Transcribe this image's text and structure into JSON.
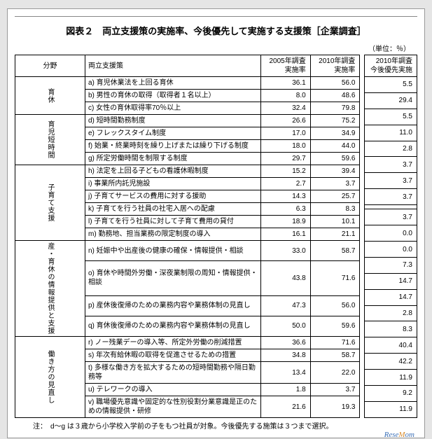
{
  "title": "図表２　両立支援策の実施率、今後優先して実施する支援策［企業調査］",
  "unit": "（単位：％）",
  "headers": {
    "field": "分野",
    "policy": "両立支援策",
    "col2005": "2005年調査\n実施率",
    "col2010": "2010年調査\n実施率",
    "col_future": "2010年調査\n今後優先実施"
  },
  "groups": [
    {
      "label": "育休",
      "rows": [
        {
          "p": "a) 育児休業法を上回る育休",
          "a": "36.1",
          "b": "56.0",
          "c": "5.5"
        },
        {
          "p": "b) 男性の育休の取得（取得者１名以上）",
          "a": "8.0",
          "b": "48.6",
          "c": "29.4"
        },
        {
          "p": "c) 女性の育休取得率70％以上",
          "a": "32.4",
          "b": "79.8",
          "c": "5.5"
        }
      ]
    },
    {
      "label": "育児短時間",
      "rows": [
        {
          "p": "d) 短時間勤務制度",
          "a": "26.6",
          "b": "75.2",
          "c": "11.0"
        },
        {
          "p": "e) フレックスタイム制度",
          "a": "17.0",
          "b": "34.9",
          "c": "2.8"
        },
        {
          "p": "f) 始業・終業時刻を繰り上げまたは繰り下げる制度",
          "a": "18.0",
          "b": "44.0",
          "c": "3.7"
        },
        {
          "p": "g) 所定労働時間を制限する制度",
          "a": "29.7",
          "b": "59.6",
          "c": "3.7"
        }
      ]
    },
    {
      "label": "子育て支援",
      "rows": [
        {
          "p": "h) 法定を上回る子どもの看護休暇制度",
          "a": "15.2",
          "b": "39.4",
          "c": "3.7"
        },
        {
          "p": "i) 事業所内託児施設",
          "a": "2.7",
          "b": "3.7",
          "c": ""
        },
        {
          "p": "j) 子育てサービスの費用に対する援助",
          "a": "14.3",
          "b": "25.7",
          "c": "3.7"
        },
        {
          "p": "k) 子育てを行う社員の社宅入居への配慮",
          "a": "6.3",
          "b": "8.3",
          "c": "0.0"
        },
        {
          "p": "l) 子育てを行う社員に対して子育て費用の貸付",
          "a": "18.9",
          "b": "10.1",
          "c": "0.0"
        },
        {
          "p": "m) 勤務地、担当業務の限定制度の導入",
          "a": "16.1",
          "b": "21.1",
          "c": "7.3"
        }
      ]
    },
    {
      "label": "産・育休の情報提供と支援",
      "rows": [
        {
          "p": "n) 妊娠中や出産後の健康の確保・情報提供・相談",
          "a": "33.0",
          "b": "58.7",
          "c": "14.7"
        },
        {
          "p": "o) 育休や時間外労働・深夜業制限の周知・情報提供・相談",
          "a": "43.8",
          "b": "71.6",
          "c": "14.7"
        },
        {
          "p": "p) 産休後復帰のための業務内容や業務体制の見直し",
          "a": "47.3",
          "b": "56.0",
          "c": "2.8"
        },
        {
          "p": "q) 育休後復帰のための業務内容や業務体制の見直し",
          "a": "50.0",
          "b": "59.6",
          "c": "8.3"
        }
      ]
    },
    {
      "label": "働き方の見直し",
      "rows": [
        {
          "p": "r) ノー残業デーの導入等、所定外労働の削減措置",
          "a": "36.6",
          "b": "71.6",
          "c": "40.4"
        },
        {
          "p": "s) 年次有給休暇の取得を促進させるための措置",
          "a": "34.8",
          "b": "58.7",
          "c": "42.2"
        },
        {
          "p": "t) 多様な働き方を拡大するための短時間勤務や隔日勤務等",
          "a": "13.4",
          "b": "22.0",
          "c": "11.9"
        },
        {
          "p": "u) テレワークの導入",
          "a": "1.8",
          "b": "3.7",
          "c": "9.2"
        },
        {
          "p": "v) 職場優先意識や固定的な性別役割分業意識是正のための情報提供・研修",
          "a": "21.6",
          "b": "19.3",
          "c": "11.9"
        }
      ]
    }
  ],
  "note": "注：　d～g は３歳から小学校入学前の子をもつ社員が対象。今後優先する施策は３つまで選択。",
  "watermark": {
    "a": "Rese",
    "b": "M",
    "c": "om"
  }
}
